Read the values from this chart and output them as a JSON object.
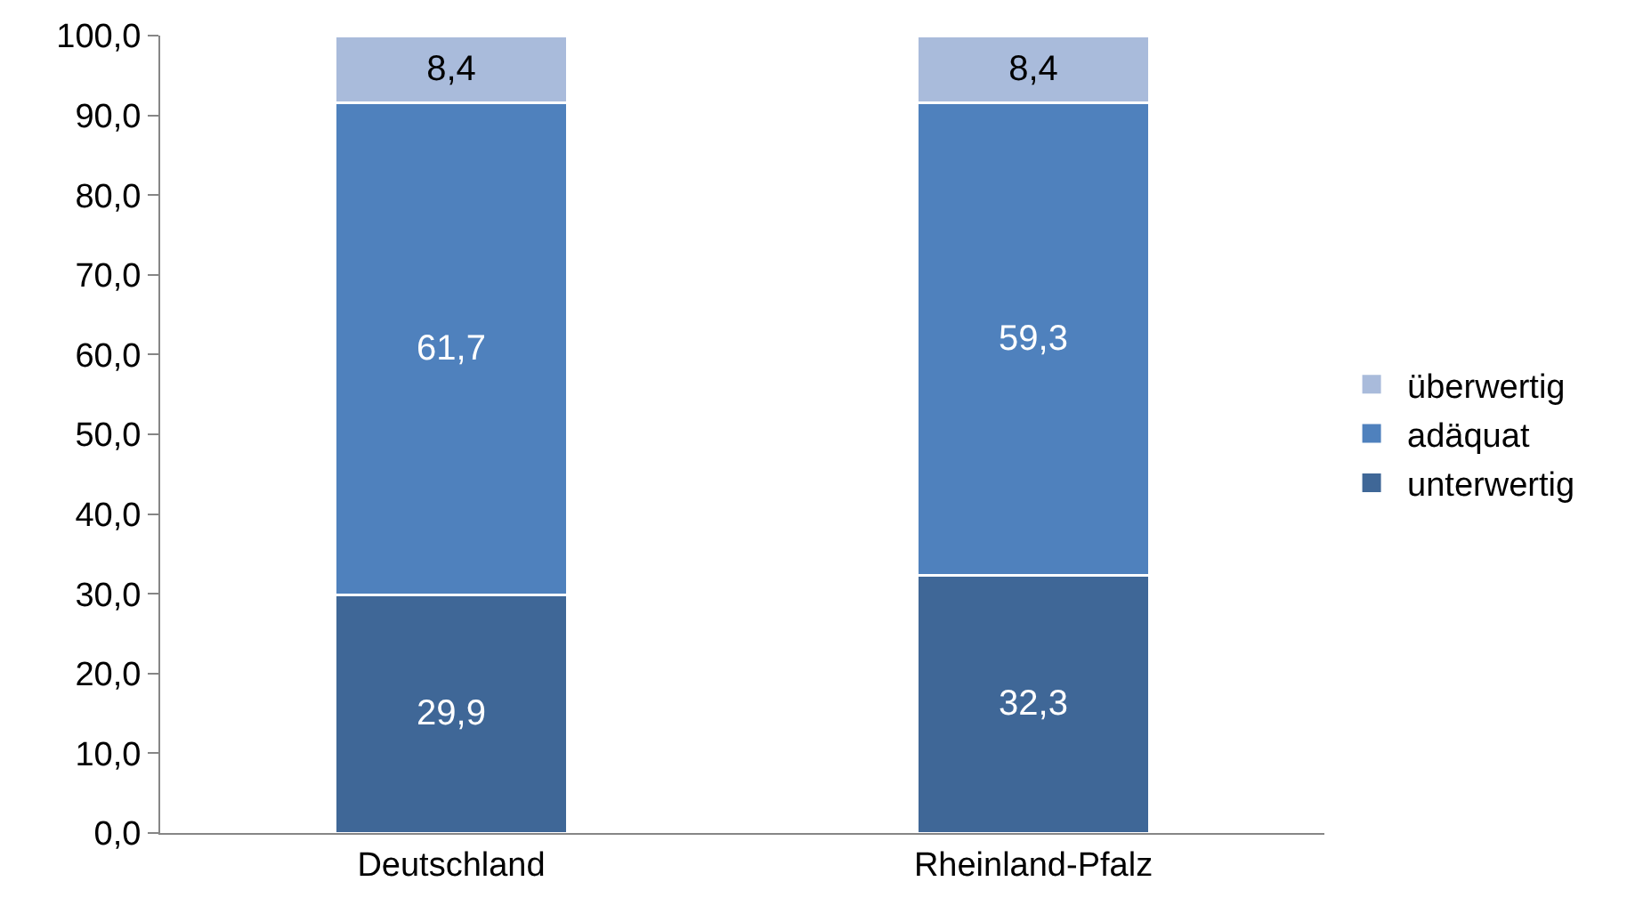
{
  "chart_data": {
    "type": "bar",
    "stacked": true,
    "categories": [
      "Deutschland",
      "Rheinland-Pfalz"
    ],
    "series": [
      {
        "name": "unterwertig",
        "color": "#3f6797",
        "values": [
          29.9,
          32.3
        ],
        "value_labels": [
          "29,9",
          "32,3"
        ]
      },
      {
        "name": "adäquat",
        "color": "#4f81bd",
        "values": [
          61.7,
          59.3
        ],
        "value_labels": [
          "61,7",
          "59,3"
        ]
      },
      {
        "name": "überwertig",
        "color": "#a9bbdb",
        "values": [
          8.4,
          8.4
        ],
        "value_labels": [
          "8,4",
          "8,4"
        ]
      }
    ],
    "ylim": [
      0,
      100
    ],
    "yticks": [
      {
        "value": 0,
        "label": "0,0"
      },
      {
        "value": 10,
        "label": "10,0"
      },
      {
        "value": 20,
        "label": "20,0"
      },
      {
        "value": 30,
        "label": "30,0"
      },
      {
        "value": 40,
        "label": "40,0"
      },
      {
        "value": 50,
        "label": "50,0"
      },
      {
        "value": 60,
        "label": "60,0"
      },
      {
        "value": 70,
        "label": "70,0"
      },
      {
        "value": 80,
        "label": "80,0"
      },
      {
        "value": 90,
        "label": "90,0"
      },
      {
        "value": 100,
        "label": "100,0"
      }
    ],
    "grid": false,
    "legend": "right"
  }
}
